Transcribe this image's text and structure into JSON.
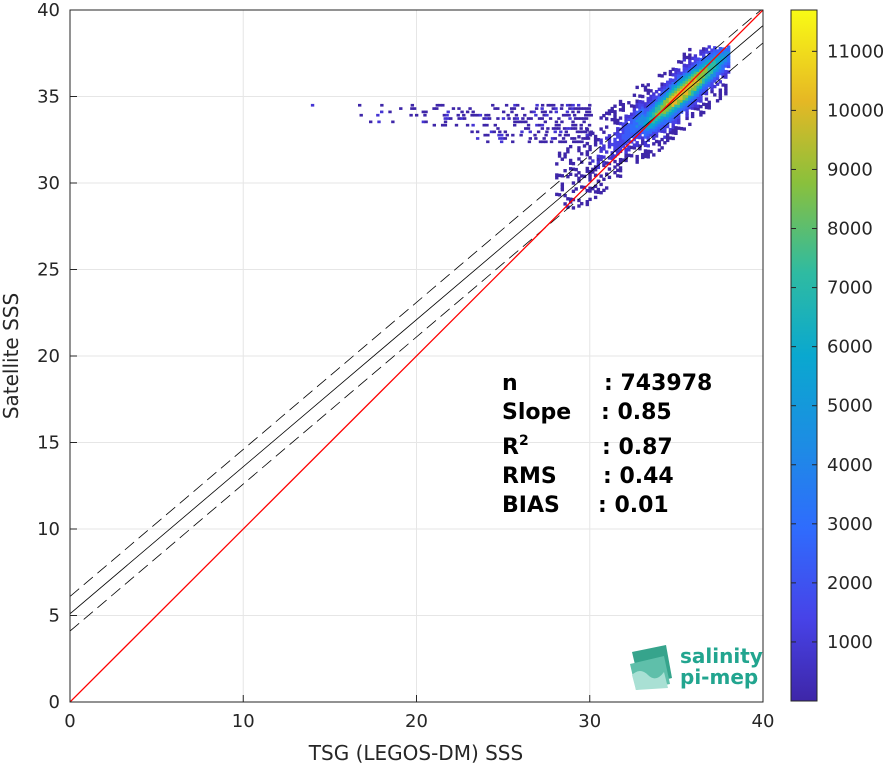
{
  "chart_data": {
    "type": "heatmap",
    "xlabel": "TSG (LEGOS-DM) SSS",
    "ylabel": "Satellite SSS",
    "xlim": [
      0,
      40
    ],
    "ylim": [
      0,
      40
    ],
    "xticks": [
      0,
      10,
      20,
      30,
      40
    ],
    "yticks": [
      0,
      5,
      10,
      15,
      20,
      25,
      30,
      35,
      40
    ],
    "grid": true,
    "colorbar": {
      "range": [
        0,
        11700
      ],
      "ticks": [
        1000,
        2000,
        3000,
        4000,
        5000,
        6000,
        7000,
        8000,
        9000,
        10000,
        11000
      ],
      "colormap": "parula"
    },
    "lines": {
      "one_to_one": {
        "slope": 1,
        "intercept": 0,
        "color": "#ff0000"
      },
      "fit": {
        "slope": 0.85,
        "intercept": 5.1,
        "color": "#000000"
      },
      "fit_upper": {
        "slope": 0.85,
        "intercept": 6.1,
        "color": "#000000",
        "style": "dashed"
      },
      "fit_lower": {
        "slope": 0.85,
        "intercept": 4.1,
        "color": "#000000",
        "style": "dashed"
      }
    },
    "density_cloud": {
      "core_center": [
        35.2,
        35.0
      ],
      "peak_count": 11700,
      "x_extent": [
        28,
        38
      ],
      "y_extent": [
        28.2,
        37.8
      ],
      "tail": {
        "x_extent": [
          12.9,
          30
        ],
        "y_extent": [
          32.3,
          34.6
        ]
      }
    }
  },
  "stats": [
    {
      "label": "n",
      "value": ": 743978"
    },
    {
      "label": "Slope",
      "value": ": 0.85"
    },
    {
      "label": "R",
      "sup": "2",
      "value": ": 0.87"
    },
    {
      "label": "RMS",
      "value": ": 0.44"
    },
    {
      "label": "BIAS",
      "value": ": 0.01"
    }
  ],
  "logo": {
    "line1": "salinity",
    "line2": "pi-mep"
  }
}
